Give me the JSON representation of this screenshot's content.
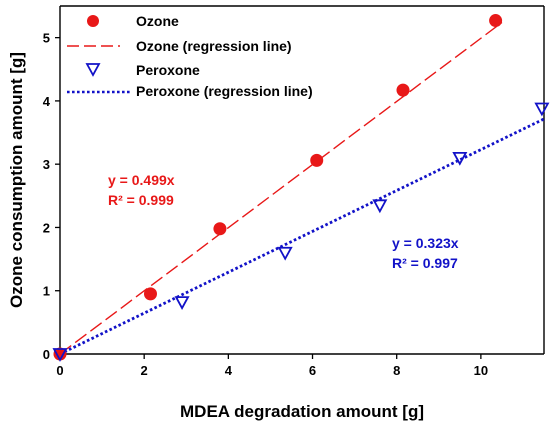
{
  "chart_data": {
    "type": "scatter",
    "xlabel": "MDEA degradation amount [g]",
    "ylabel": "Ozone consumption amount [g]",
    "xlim": [
      0,
      11.5
    ],
    "ylim": [
      0,
      5.5
    ],
    "xticks": [
      "0",
      "2",
      "4",
      "6",
      "8",
      "10"
    ],
    "yticks": [
      "0",
      "1",
      "2",
      "3",
      "4",
      "5"
    ],
    "grid": false,
    "legend_position": "top-left",
    "series": [
      {
        "name": "Ozone",
        "marker": "filled-circle",
        "color": "#e81818",
        "points": [
          [
            0,
            0
          ],
          [
            2.15,
            0.95
          ],
          [
            3.8,
            1.98
          ],
          [
            6.1,
            3.06
          ],
          [
            8.15,
            4.17
          ],
          [
            10.35,
            5.27
          ]
        ]
      },
      {
        "name": "Ozone (regression line)",
        "style": "dashed",
        "color": "#e81818",
        "slope": 0.499,
        "x_range": [
          0,
          10.5
        ]
      },
      {
        "name": "Peroxone",
        "marker": "open-triangle-down",
        "color": "#1212c8",
        "points": [
          [
            0,
            0
          ],
          [
            2.9,
            0.82
          ],
          [
            5.35,
            1.6
          ],
          [
            7.6,
            2.35
          ],
          [
            9.5,
            3.1
          ],
          [
            11.45,
            3.88
          ]
        ]
      },
      {
        "name": "Peroxone (regression line)",
        "style": "dotted",
        "color": "#1212c8",
        "slope": 0.323,
        "x_range": [
          0,
          11.5
        ]
      }
    ],
    "annotations": [
      {
        "id": "ozone-eq",
        "lines": [
          "y = 0.499x",
          "R² = 0.999"
        ],
        "color": "#e81818",
        "anchor": [
          1.55,
          2.78
        ]
      },
      {
        "id": "peroxone-eq",
        "lines": [
          "y = 0.323x",
          "R² = 0.997"
        ],
        "color": "#1212c8",
        "anchor": [
          10.7,
          1.73
        ]
      }
    ]
  }
}
